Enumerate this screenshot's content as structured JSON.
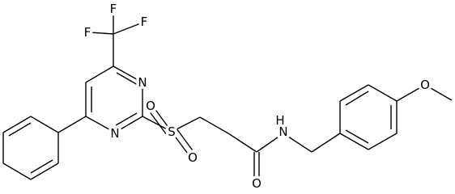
{
  "atoms": [
    {
      "label": "F"
    },
    {
      "label": "F"
    },
    {
      "label": "F"
    },
    {
      "label": "N"
    },
    {
      "label": "N"
    },
    {
      "label": "S"
    },
    {
      "label": "O"
    },
    {
      "label": "O"
    },
    {
      "label": "O"
    },
    {
      "label": "N"
    },
    {
      "label": "H"
    },
    {
      "label": "O"
    }
  ]
}
